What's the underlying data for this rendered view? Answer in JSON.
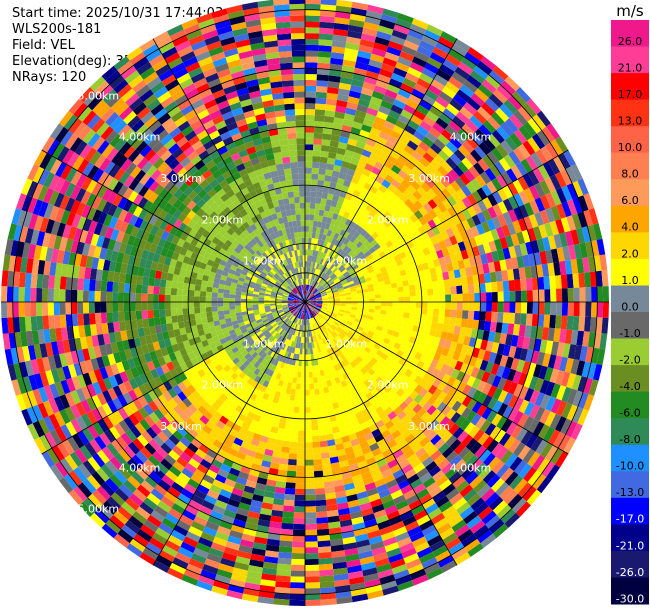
{
  "header": {
    "start_time": "Start time: 2025/10/31 17:44:03",
    "instrument": "WLS200s-181",
    "field": "Field: VEL",
    "elevation": "Elevation(deg): 35.00",
    "nrays": "NRays: 120"
  },
  "chart_data": {
    "type": "heatmap",
    "projection": "polar-ppi",
    "field": "VEL",
    "elevation_deg": 35.0,
    "nrays": 120,
    "ring_labels": [
      "1.00km",
      "2.00km",
      "3.00km",
      "4.00km",
      "5.00km"
    ],
    "max_range_km": 5.2,
    "colorbar": {
      "unit": "m/s",
      "tick_labels": [
        "26.0",
        "21.0",
        "17.0",
        "13.0",
        "10.0",
        "8.0",
        "6.0",
        "4.0",
        "2.0",
        "1.0",
        "0.0",
        "-1.0",
        "-2.0",
        "-4.0",
        "-6.0",
        "-8.0",
        "-10.0",
        "-13.0",
        "-17.0",
        "-21.0",
        "-26.0",
        "-30.0"
      ],
      "colors": [
        "#f0198c",
        "#ff3c96",
        "#ff0000",
        "#ff3214",
        "#ff6347",
        "#ff7f50",
        "#ff9b5a",
        "#ffa500",
        "#ffd700",
        "#ffff00",
        "#778899",
        "#696969",
        "#9acd32",
        "#6b8e23",
        "#228b22",
        "#2e8b57",
        "#1e90ff",
        "#4169e1",
        "#0000ff",
        "#00008b",
        "#191970",
        "#000040"
      ]
    }
  }
}
